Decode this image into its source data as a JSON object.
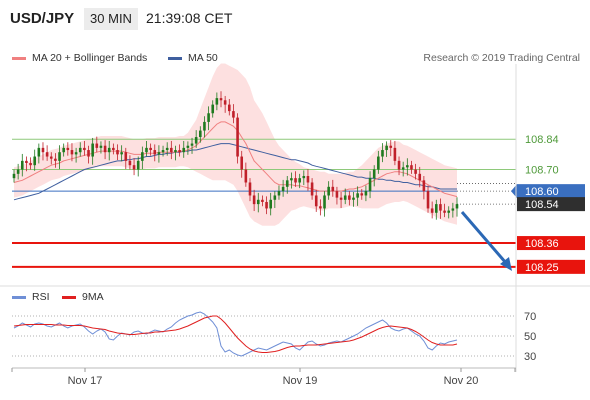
{
  "header": {
    "symbol": "USD/JPY",
    "timeframe": "30 MIN",
    "time": "21:39:08 CET"
  },
  "legend": {
    "ma20_label": "MA 20 + Bollinger Bands",
    "ma50_label": "MA 50",
    "credit": "Research © 2019 Trading Central",
    "rsi_label": "RSI",
    "ma9_label": "9MA"
  },
  "colors": {
    "ma20": "#f08080",
    "band_fill": "#fde0e0",
    "ma50": "#3f5f9f",
    "up": "#1f7a1f",
    "down": "#c0202a",
    "green_level": "#8ec97a",
    "red_level": "#e8140d",
    "blue_level": "#3a6fc0",
    "rsi": "#6f8fd6",
    "rsi_ma": "#e02020",
    "arrow": "#2b68b5"
  },
  "chart_data": [
    {
      "type": "candlestick",
      "title": "USD/JPY",
      "x_ticks": [
        "Nov 17",
        "Nov 19",
        "Nov 20"
      ],
      "ylim": [
        108.18,
        109.16
      ],
      "levels": [
        {
          "value": 108.84,
          "label": "108.84",
          "style": "resistance"
        },
        {
          "value": 108.7,
          "label": "108.70",
          "style": "resistance"
        },
        {
          "value": 108.6,
          "label": "108.60",
          "style": "pivot"
        },
        {
          "value": 108.54,
          "label": "108.54",
          "style": "last"
        },
        {
          "value": 108.36,
          "label": "108.36",
          "style": "support"
        },
        {
          "value": 108.25,
          "label": "108.25",
          "style": "support"
        }
      ],
      "close": [
        108.68,
        108.7,
        108.74,
        108.73,
        108.72,
        108.76,
        108.8,
        108.78,
        108.76,
        108.75,
        108.74,
        108.78,
        108.8,
        108.79,
        108.77,
        108.78,
        108.8,
        108.79,
        108.76,
        108.82,
        108.8,
        108.81,
        108.78,
        108.8,
        108.79,
        108.77,
        108.78,
        108.74,
        108.72,
        108.7,
        108.74,
        108.78,
        108.8,
        108.79,
        108.77,
        108.78,
        108.79,
        108.8,
        108.78,
        108.79,
        108.78,
        108.8,
        108.81,
        108.82,
        108.85,
        108.88,
        108.92,
        108.96,
        109.0,
        109.03,
        109.02,
        109.0,
        108.97,
        108.94,
        108.76,
        108.7,
        108.64,
        108.58,
        108.54,
        108.56,
        108.55,
        108.52,
        108.56,
        108.58,
        108.6,
        108.62,
        108.65,
        108.66,
        108.64,
        108.66,
        108.67,
        108.64,
        108.58,
        108.53,
        108.52,
        108.58,
        108.62,
        108.6,
        108.57,
        108.56,
        108.58,
        108.56,
        108.57,
        108.59,
        108.58,
        108.6,
        108.66,
        108.7,
        108.76,
        108.79,
        108.81,
        108.8,
        108.74,
        108.7,
        108.71,
        108.72,
        108.7,
        108.68,
        108.65,
        108.6,
        108.52,
        108.5,
        108.54,
        108.51,
        108.5,
        108.51,
        108.52,
        108.54
      ],
      "ma20": [
        108.64,
        108.645,
        108.65,
        108.66,
        108.67,
        108.68,
        108.69,
        108.7,
        108.71,
        108.72,
        108.725,
        108.73,
        108.74,
        108.745,
        108.75,
        108.755,
        108.76,
        108.765,
        108.77,
        108.775,
        108.78,
        108.785,
        108.785,
        108.785,
        108.785,
        108.785,
        108.785,
        108.78,
        108.775,
        108.77,
        108.77,
        108.77,
        108.775,
        108.775,
        108.775,
        108.78,
        108.78,
        108.78,
        108.78,
        108.78,
        108.785,
        108.785,
        108.79,
        108.8,
        108.81,
        108.83,
        108.85,
        108.87,
        108.89,
        108.91,
        108.92,
        108.92,
        108.91,
        108.9,
        108.88,
        108.85,
        108.82,
        108.78,
        108.74,
        108.72,
        108.7,
        108.68,
        108.66,
        108.64,
        108.63,
        108.63,
        108.63,
        108.63,
        108.625,
        108.625,
        108.62,
        108.615,
        108.61,
        108.605,
        108.6,
        108.6,
        108.6,
        108.6,
        108.6,
        108.6,
        108.605,
        108.61,
        108.61,
        108.615,
        108.62,
        108.63,
        108.64,
        108.65,
        108.66,
        108.67,
        108.68,
        108.685,
        108.69,
        108.69,
        108.685,
        108.68,
        108.67,
        108.66,
        108.65,
        108.64,
        108.63,
        108.62,
        108.61,
        108.6,
        108.59,
        108.585,
        108.58,
        108.575
      ],
      "upper_band_dev": [
        0.07,
        0.07,
        0.07,
        0.07,
        0.07,
        0.07,
        0.07,
        0.07,
        0.07,
        0.07,
        0.07,
        0.07,
        0.07,
        0.07,
        0.07,
        0.07,
        0.07,
        0.07,
        0.07,
        0.07,
        0.07,
        0.07,
        0.07,
        0.07,
        0.07,
        0.07,
        0.07,
        0.07,
        0.07,
        0.07,
        0.07,
        0.07,
        0.07,
        0.07,
        0.07,
        0.07,
        0.07,
        0.07,
        0.07,
        0.07,
        0.07,
        0.07,
        0.08,
        0.1,
        0.12,
        0.15,
        0.18,
        0.21,
        0.24,
        0.26,
        0.27,
        0.27,
        0.27,
        0.27,
        0.28,
        0.29,
        0.3,
        0.3,
        0.28,
        0.27,
        0.26,
        0.24,
        0.22,
        0.2,
        0.18,
        0.16,
        0.14,
        0.12,
        0.11,
        0.1,
        0.09,
        0.09,
        0.09,
        0.09,
        0.09,
        0.09,
        0.08,
        0.08,
        0.08,
        0.08,
        0.08,
        0.08,
        0.08,
        0.09,
        0.1,
        0.11,
        0.12,
        0.13,
        0.14,
        0.14,
        0.14,
        0.14,
        0.14,
        0.14,
        0.13,
        0.13,
        0.13,
        0.13,
        0.13,
        0.13,
        0.13,
        0.13,
        0.13,
        0.13,
        0.13,
        0.13,
        0.13,
        0.13
      ],
      "ma50": [
        108.56,
        108.565,
        108.57,
        108.575,
        108.58,
        108.585,
        108.59,
        108.6,
        108.61,
        108.62,
        108.63,
        108.64,
        108.65,
        108.66,
        108.67,
        108.68,
        108.69,
        108.7,
        108.705,
        108.71,
        108.715,
        108.72,
        108.725,
        108.73,
        108.735,
        108.74,
        108.74,
        108.745,
        108.745,
        108.75,
        108.75,
        108.755,
        108.76,
        108.76,
        108.765,
        108.77,
        108.77,
        108.775,
        108.775,
        108.78,
        108.78,
        108.785,
        108.785,
        108.79,
        108.79,
        108.795,
        108.8,
        108.805,
        108.81,
        108.815,
        108.82,
        108.82,
        108.82,
        108.815,
        108.81,
        108.805,
        108.8,
        108.795,
        108.79,
        108.785,
        108.78,
        108.775,
        108.77,
        108.765,
        108.76,
        108.755,
        108.75,
        108.745,
        108.745,
        108.74,
        108.735,
        108.73,
        108.72,
        108.715,
        108.71,
        108.705,
        108.7,
        108.695,
        108.69,
        108.685,
        108.68,
        108.675,
        108.67,
        108.665,
        108.665,
        108.66,
        108.66,
        108.66,
        108.655,
        108.655,
        108.65,
        108.65,
        108.645,
        108.645,
        108.64,
        108.64,
        108.635,
        108.63,
        108.63,
        108.625,
        108.62,
        108.62,
        108.615,
        108.61,
        108.61,
        108.61,
        108.61,
        108.61
      ]
    },
    {
      "type": "line",
      "title": "RSI",
      "x_ticks": [
        "Nov 17",
        "Nov 19",
        "Nov 20"
      ],
      "ylim": [
        20,
        80
      ],
      "y_ticks": [
        70,
        50,
        30
      ],
      "series": [
        {
          "name": "RSI",
          "values": [
            58,
            60,
            63,
            61,
            59,
            62,
            63,
            62,
            60,
            59,
            61,
            63,
            60,
            58,
            60,
            61,
            62,
            59,
            55,
            52,
            55,
            57,
            54,
            47,
            46,
            50,
            53,
            52,
            51,
            54,
            55,
            53,
            52,
            54,
            56,
            55,
            54,
            57,
            59,
            63,
            66,
            68,
            70,
            71,
            73,
            74,
            72,
            68,
            64,
            58,
            40,
            34,
            36,
            33,
            31,
            30,
            32,
            34,
            36,
            38,
            37,
            36,
            38,
            40,
            42,
            44,
            43,
            42,
            38,
            36,
            40,
            44,
            45,
            42,
            40,
            41,
            43,
            44,
            45,
            44,
            46,
            48,
            50,
            52,
            55,
            58,
            60,
            62,
            64,
            66,
            63,
            58,
            56,
            55,
            57,
            58,
            55,
            52,
            50,
            45,
            38,
            36,
            40,
            43,
            42,
            44,
            45,
            46
          ]
        },
        {
          "name": "9MA",
          "values": [
            60,
            60.5,
            61,
            61.5,
            61.5,
            61.5,
            61.5,
            61.5,
            61.5,
            61.5,
            61,
            61,
            61,
            60.5,
            60.5,
            60.5,
            60.5,
            60,
            59,
            58,
            57.5,
            57,
            56.5,
            55,
            54,
            53,
            52.5,
            52,
            51.5,
            51.5,
            52,
            52.5,
            53,
            53,
            54,
            54,
            54.5,
            55,
            55.5,
            56,
            57,
            58.5,
            60,
            62,
            64,
            66,
            68,
            69,
            70,
            70,
            67,
            63,
            58,
            53,
            48,
            44,
            40,
            37,
            35,
            34,
            33.5,
            33.5,
            34,
            34.5,
            35.5,
            37,
            38.5,
            39.5,
            40,
            40,
            40.5,
            41,
            41,
            41,
            41.5,
            42,
            42.5,
            43,
            43.5,
            44,
            44.5,
            45,
            46,
            47.5,
            49,
            51,
            53,
            55,
            57,
            58.5,
            59.5,
            60,
            59.5,
            59,
            58.5,
            58,
            56.5,
            54.5,
            52,
            49,
            46,
            43.5,
            42,
            41,
            41,
            41,
            41,
            42
          ]
        }
      ]
    }
  ]
}
